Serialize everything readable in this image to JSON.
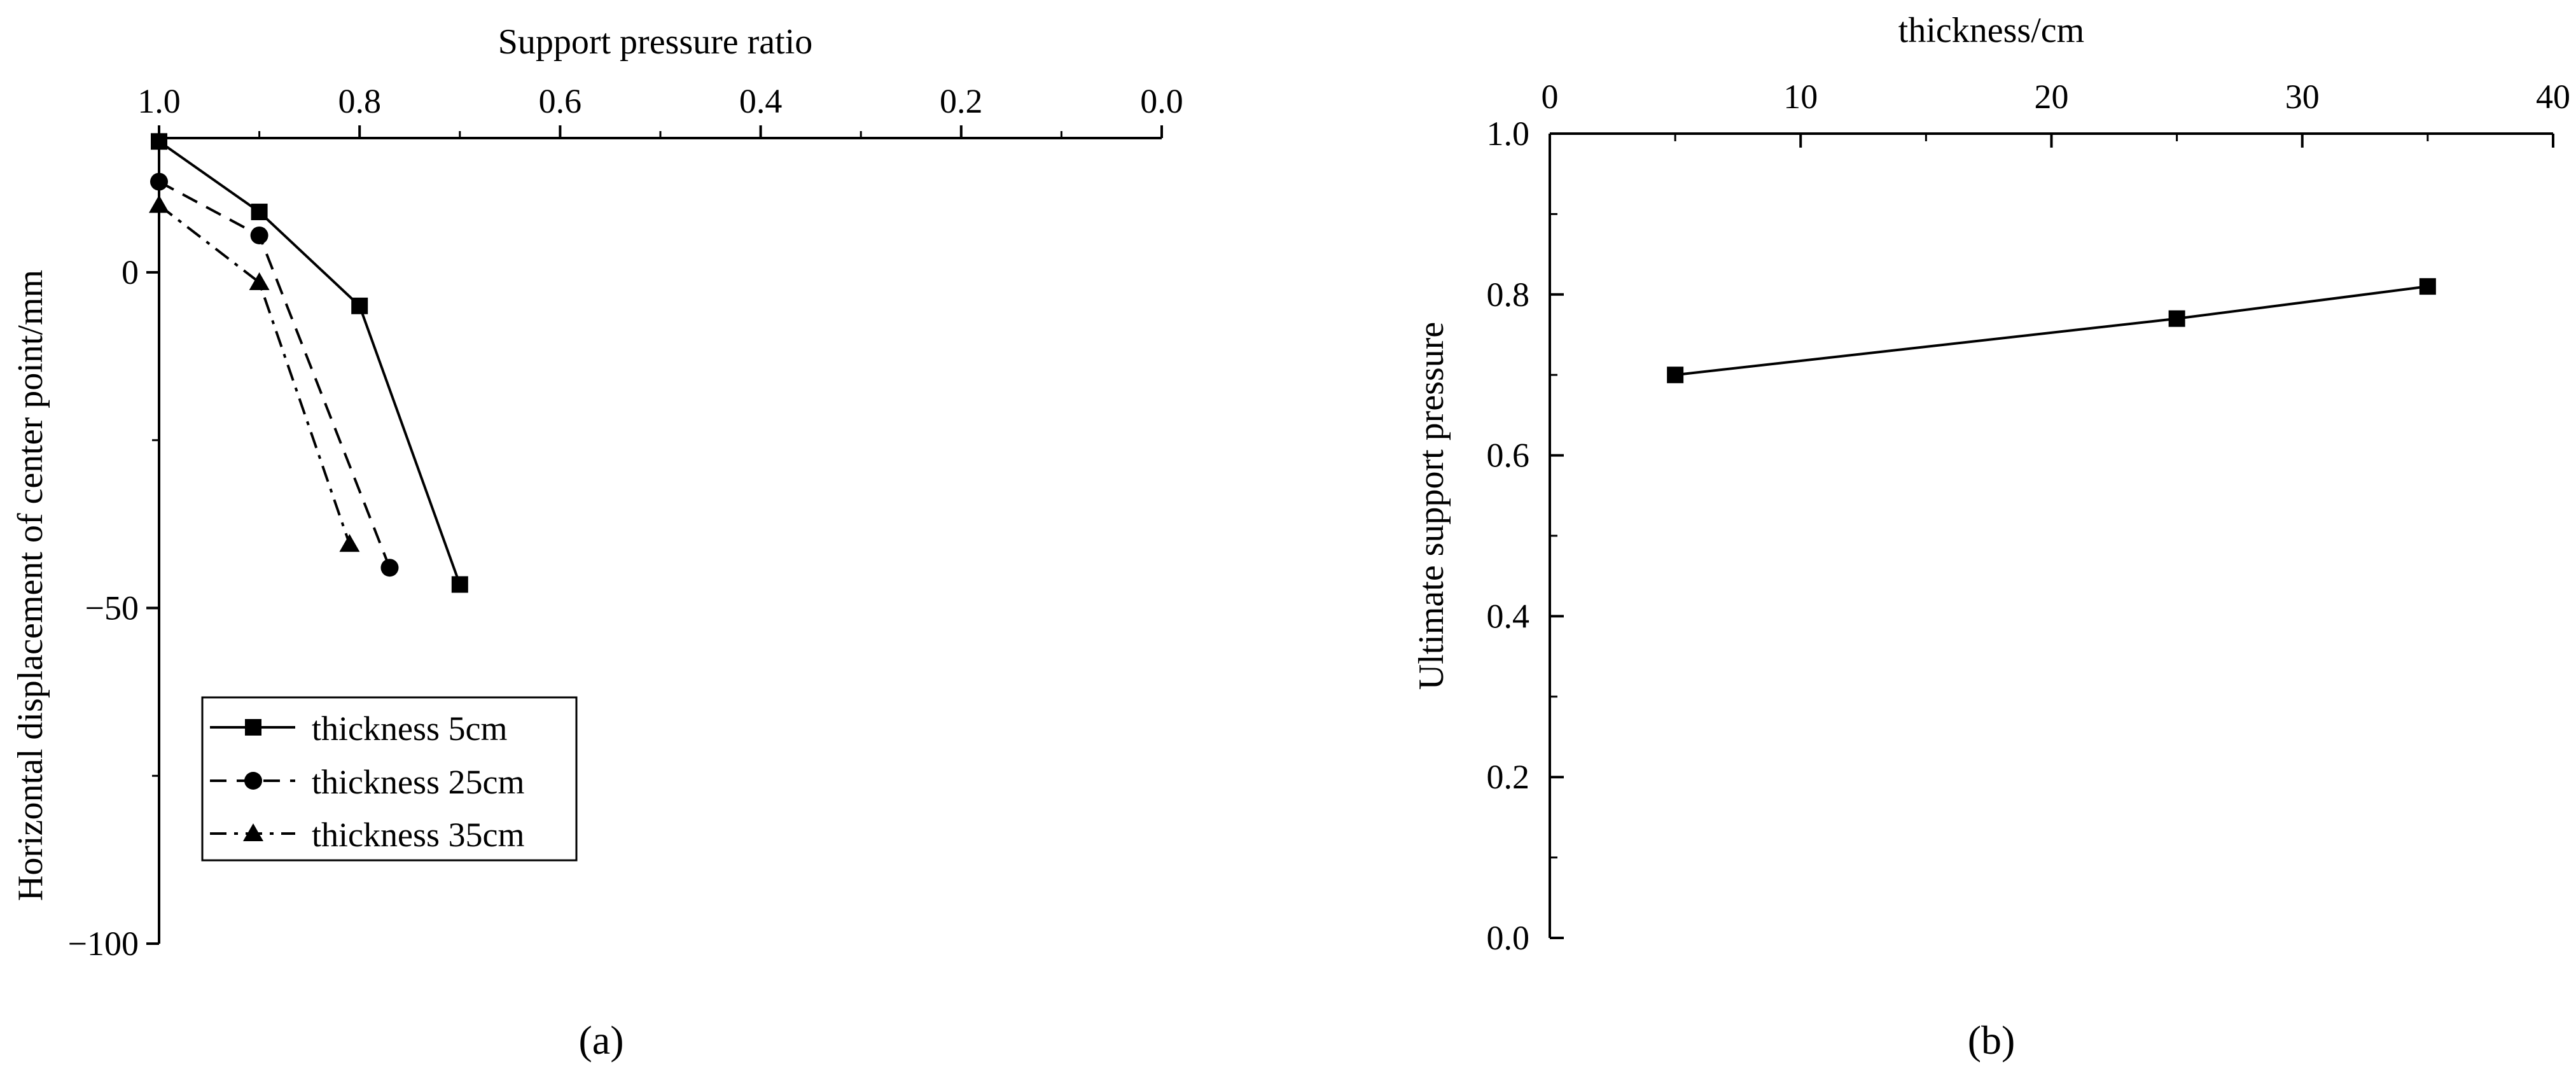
{
  "chart_data": [
    {
      "type": "line",
      "panel_label": "(a)",
      "xlabel": "Support pressure ratio",
      "ylabel": "Horizontal displacement of center point/mm",
      "x_axis_position": "top",
      "x_reversed": true,
      "xlim": [
        1.0,
        0.0
      ],
      "ylim": [
        -100,
        20
      ],
      "xticks": [
        1.0,
        0.8,
        0.6,
        0.4,
        0.2,
        0.0
      ],
      "xtick_labels": [
        "1.0",
        "0.8",
        "0.6",
        "0.4",
        "0.2",
        "0.0"
      ],
      "yticks": [
        0,
        -50,
        -100
      ],
      "ytick_labels": [
        "0",
        "−50",
        "−100"
      ],
      "grid": false,
      "legend_position": "lower-left",
      "series": [
        {
          "name": "thickness 5cm",
          "marker": "square",
          "line_style": "solid",
          "x": [
            1.0,
            0.9,
            0.8,
            0.7
          ],
          "y": [
            19.5,
            9,
            -5,
            -46.5
          ]
        },
        {
          "name": "thickness 25cm",
          "marker": "circle",
          "line_style": "dashed",
          "x": [
            1.0,
            0.9,
            0.77
          ],
          "y": [
            13.5,
            5.5,
            -44
          ]
        },
        {
          "name": "thickness 35cm",
          "marker": "triangle",
          "line_style": "dashdot",
          "x": [
            1.0,
            0.9,
            0.81
          ],
          "y": [
            10,
            -1.5,
            -40.5
          ]
        }
      ]
    },
    {
      "type": "line",
      "panel_label": "(b)",
      "xlabel": "thickness/cm",
      "ylabel": "Ultimate support pressure",
      "x_axis_position": "top",
      "xlim": [
        0,
        40
      ],
      "ylim": [
        0.0,
        1.0
      ],
      "xticks": [
        0,
        10,
        20,
        30,
        40
      ],
      "xtick_labels": [
        "0",
        "10",
        "20",
        "30",
        "40"
      ],
      "yticks": [
        0.0,
        0.2,
        0.4,
        0.6,
        0.8,
        1.0
      ],
      "ytick_labels": [
        "0.0",
        "0.2",
        "0.4",
        "0.6",
        "0.8",
        "1.0"
      ],
      "grid": false,
      "series": [
        {
          "marker": "square",
          "line_style": "solid",
          "x": [
            5,
            25,
            35
          ],
          "y": [
            0.7,
            0.77,
            0.81
          ]
        }
      ]
    }
  ]
}
